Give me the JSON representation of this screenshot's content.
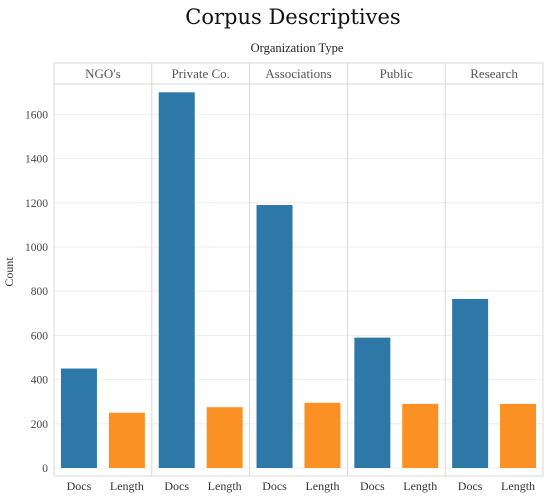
{
  "chart_data": {
    "type": "bar",
    "title": "Corpus Descriptives",
    "column_header": "Organization Type",
    "ylabel": "Count",
    "ylim": [
      0,
      1800
    ],
    "yticks": [
      0,
      200,
      400,
      600,
      800,
      1000,
      1200,
      1400,
      1600
    ],
    "grid": true,
    "panels": [
      "NGO's",
      "Private Co.",
      "Associations",
      "Public",
      "Research"
    ],
    "categories": [
      "Docs",
      "Length"
    ],
    "colors": {
      "Docs": "#2e78a7",
      "Length": "#fb9024"
    },
    "values": [
      [
        450,
        250
      ],
      [
        1700,
        275
      ],
      [
        1190,
        295
      ],
      [
        590,
        290
      ],
      [
        765,
        290
      ]
    ]
  }
}
